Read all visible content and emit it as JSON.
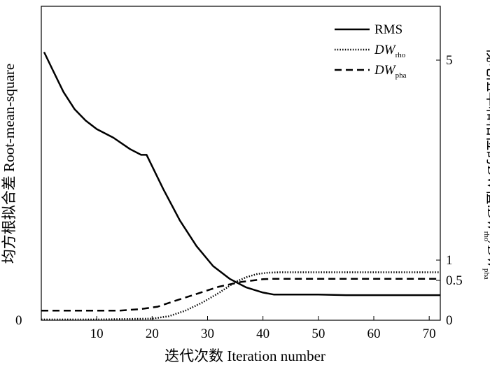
{
  "chart_data": {
    "type": "line",
    "xlabel": "迭代次数 Iteration number",
    "ylabel_left": "均方根拟合差 Root-mean-square",
    "ylabel_right": {
      "prefix": "视电阻率和相位的DW值:",
      "dw1": "DW",
      "sub1": "rho",
      "sep": "/",
      "dw2": "DW",
      "sub2": "pha"
    },
    "xlim": [
      0,
      72
    ],
    "x_ticks": [
      10,
      20,
      30,
      40,
      50,
      60,
      70
    ],
    "y_left_ticks": [
      0
    ],
    "y_right_ticks": [
      0,
      0.5,
      1,
      5
    ],
    "y_right_scale": "nonlinear",
    "grid": false,
    "legend_position": "top-right",
    "legend": [
      {
        "name": "RMS",
        "style": "solid"
      },
      {
        "dw": "DW",
        "sub": "rho",
        "style": "dotted"
      },
      {
        "dw": "DW",
        "sub": "pha",
        "style": "dashed"
      }
    ],
    "series": [
      {
        "name": "RMS",
        "axis": "left",
        "style": "solid",
        "x": [
          0.5,
          2,
          4,
          6,
          8,
          10,
          13,
          16,
          18,
          19,
          20,
          22,
          25,
          28,
          31,
          34,
          37,
          40,
          42,
          45,
          50,
          55,
          60,
          65,
          72
        ],
        "y": [
          0.94,
          0.88,
          0.8,
          0.74,
          0.7,
          0.67,
          0.64,
          0.6,
          0.58,
          0.58,
          0.54,
          0.46,
          0.35,
          0.26,
          0.19,
          0.145,
          0.115,
          0.097,
          0.09,
          0.09,
          0.09,
          0.088,
          0.088,
          0.088,
          0.088
        ]
      },
      {
        "name": "DW_rho",
        "axis": "right",
        "style": "dotted",
        "x": [
          0,
          10,
          20,
          23,
          26,
          29,
          32,
          35,
          37,
          39,
          41,
          43,
          50,
          60,
          72
        ],
        "y": [
          0.01,
          0.01,
          0.02,
          0.05,
          0.12,
          0.22,
          0.34,
          0.48,
          0.58,
          0.66,
          0.69,
          0.7,
          0.7,
          0.7,
          0.7
        ]
      },
      {
        "name": "DW_pha",
        "axis": "right",
        "style": "dashed",
        "x": [
          0,
          14,
          18,
          21,
          24,
          28,
          32,
          36,
          40,
          42,
          45,
          50,
          60,
          72
        ],
        "y": [
          0.12,
          0.12,
          0.14,
          0.17,
          0.24,
          0.33,
          0.42,
          0.48,
          0.53,
          0.54,
          0.54,
          0.54,
          0.54,
          0.54
        ]
      }
    ]
  }
}
